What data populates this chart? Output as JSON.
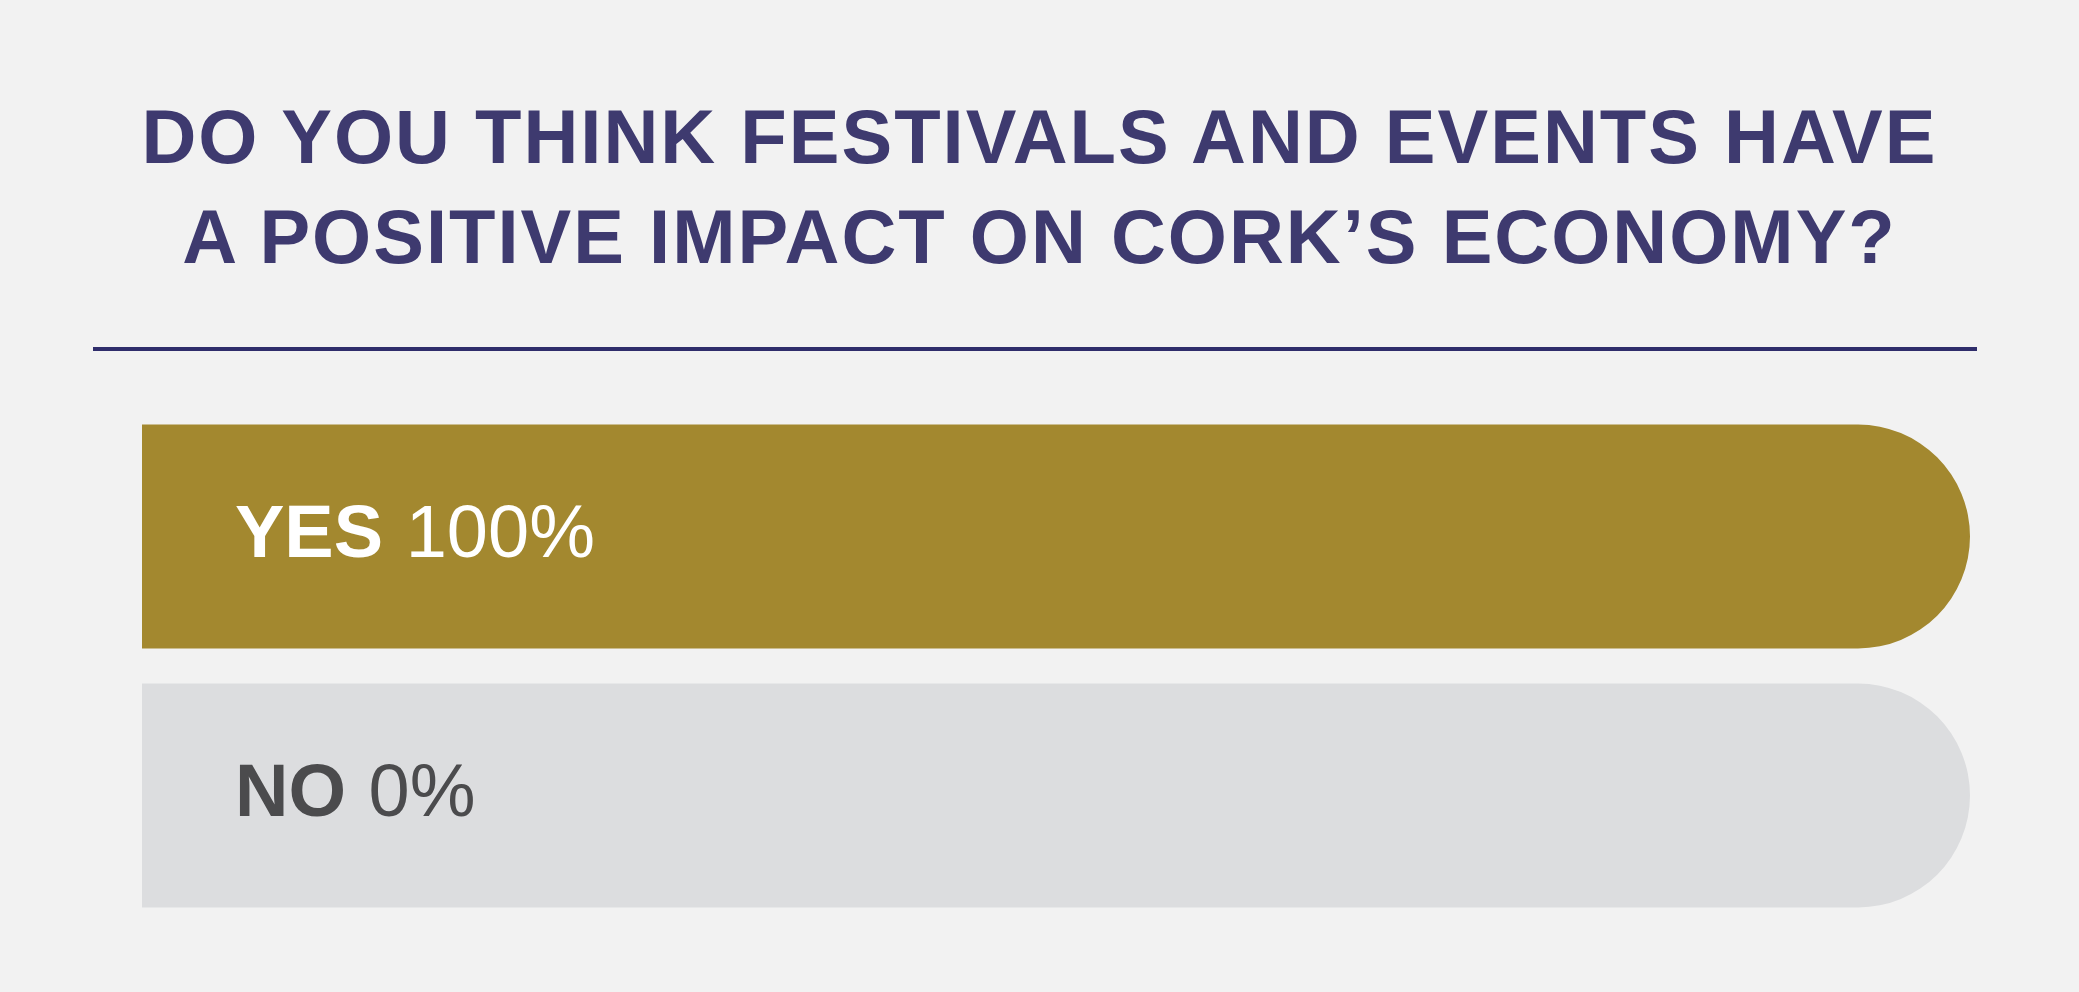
{
  "chart_data": {
    "type": "bar",
    "title": "DO YOU THINK FESTIVALS AND EVENTS HAVE A POSITIVE IMPACT ON CORK’S ECONOMY?",
    "orientation": "horizontal",
    "stacked": true,
    "categories": [
      "YES",
      "NO"
    ],
    "tick_labels": "y",
    "series": [
      {
        "color": "#a3882f",
        "values": [
          100,
          0
        ],
        "value_labels": [
          "100%",
          "0%"
        ]
      },
      {
        "color": "#dcdddf",
        "values": [
          null,
          100
        ]
      }
    ]
  }
}
